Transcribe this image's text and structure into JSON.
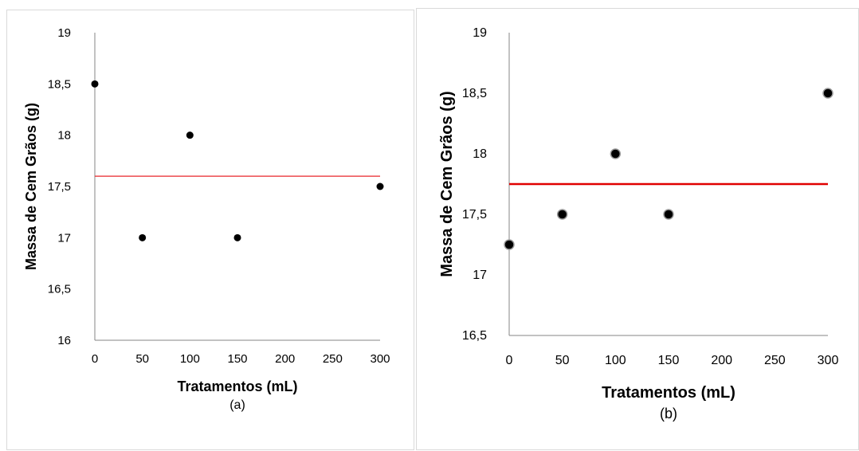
{
  "chart_data": [
    {
      "type": "scatter",
      "panel_label": "(a)",
      "xlabel": "Tratamentos (mL)",
      "ylabel": "Massa de Cem Grãos (g)",
      "xlim": [
        0,
        300
      ],
      "ylim": [
        16,
        19
      ],
      "x_ticks": [
        "0",
        "50",
        "100",
        "150",
        "200",
        "250",
        "300"
      ],
      "y_ticks": [
        "16",
        "16,5",
        "17",
        "17,5",
        "18",
        "18,5",
        "19"
      ],
      "grid": false,
      "legend": "none",
      "points": [
        {
          "x": 0,
          "y": 18.5
        },
        {
          "x": 50,
          "y": 17.0
        },
        {
          "x": 100,
          "y": 18.0
        },
        {
          "x": 150,
          "y": 17.0
        },
        {
          "x": 300,
          "y": 17.5
        }
      ],
      "mean_line": {
        "y": 17.6,
        "color": "#e8262b"
      }
    },
    {
      "type": "scatter",
      "panel_label": "(b)",
      "xlabel": "Tratamentos (mL)",
      "ylabel": "Massa de Cem Grãos (g)",
      "xlim": [
        0,
        300
      ],
      "ylim": [
        16.5,
        19
      ],
      "x_ticks": [
        "0",
        "50",
        "100",
        "150",
        "200",
        "250",
        "300"
      ],
      "y_ticks": [
        "16,5",
        "17",
        "17,5",
        "18",
        "18,5",
        "19"
      ],
      "grid": false,
      "legend": "none",
      "points": [
        {
          "x": 0,
          "y": 17.25
        },
        {
          "x": 50,
          "y": 17.5
        },
        {
          "x": 100,
          "y": 18.0
        },
        {
          "x": 150,
          "y": 17.5
        },
        {
          "x": 300,
          "y": 18.5
        }
      ],
      "mean_line": {
        "y": 17.75,
        "color": "#e00000"
      }
    }
  ]
}
